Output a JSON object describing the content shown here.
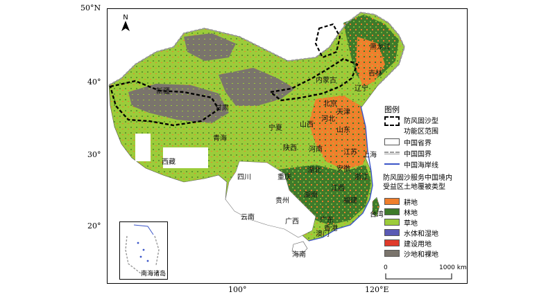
{
  "axes": {
    "lat_labels": [
      "50°N",
      "40°",
      "30°",
      "20°"
    ],
    "lon_labels": [
      "100°",
      "120°E"
    ]
  },
  "north_arrow": {
    "label": "N",
    "icon": "north-arrow-icon"
  },
  "legend": {
    "title": "图例",
    "zone_label_line1": "防风固沙型",
    "zone_label_line2": "功能区范围",
    "province_label": "中国省界",
    "national_border_label": "中国国界",
    "coastline_label": "中国海岸线",
    "landcover_title_line1": "防风固沙服务中国境内",
    "landcover_title_line2": "受益区土地覆被类型",
    "classes": [
      {
        "label": "耕地",
        "color": "#f07f2c"
      },
      {
        "label": "林地",
        "color": "#3e7a2a"
      },
      {
        "label": "草地",
        "color": "#9ccc3a"
      },
      {
        "label": "水体和湿地",
        "color": "#5a5ab4"
      },
      {
        "label": "建设用地",
        "color": "#e03a2a"
      },
      {
        "label": "沙地和裸地",
        "color": "#7a746c"
      }
    ]
  },
  "provinces": {
    "heilongjiang": "黑龙江",
    "jilin": "吉林",
    "liaoning": "辽宁",
    "neimenggu": "内蒙古",
    "xinjiang": "新疆",
    "gansu": "甘肃",
    "qinghai": "青海",
    "xizang": "西藏",
    "ningxia": "宁夏",
    "shaanxi": "陕西",
    "shanxi": "山西",
    "beijing": "北京",
    "tianjin": "天津",
    "hebei": "河北",
    "shandong": "山东",
    "henan": "河南",
    "jiangsu": "江苏",
    "shanghai": "上海",
    "anhui": "安徽",
    "hubei": "湖北",
    "zhejiang": "浙江",
    "sichuan": "四川",
    "chongqing": "重庆",
    "jiangxi": "江西",
    "hunan": "湖南",
    "guizhou": "贵州",
    "fujian": "福建",
    "taiwan": "台湾",
    "yunnan": "云南",
    "guangxi": "广西",
    "guangdong": "广东",
    "xianggang": "香港",
    "aomen": "澳门",
    "hainan": "海南"
  },
  "inset": {
    "label": "南海诸岛"
  },
  "scalebar": {
    "zero": "0",
    "end": "1000 km"
  }
}
